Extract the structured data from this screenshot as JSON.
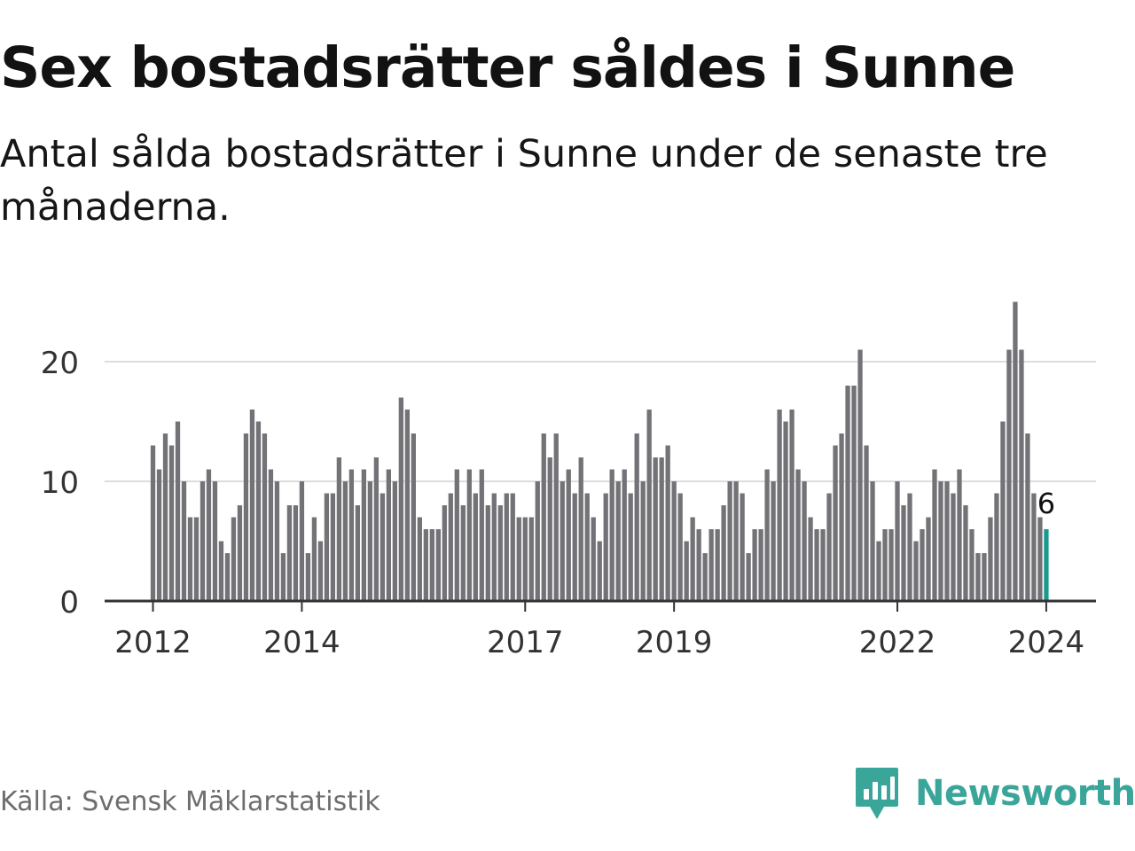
{
  "title": "Sex bostadsrätter såldes i Sunne",
  "subtitle": "Antal sålda bostadsrätter i Sunne under de senaste tre månaderna.",
  "source": "Källa: Svensk Mäklarstatistik",
  "brand": {
    "name": "Newsworthy",
    "icon": "newsworthy-logo-icon",
    "color": "#3aa69a"
  },
  "colors": {
    "bar": "#737277",
    "highlight": "#1a9a8e",
    "grid": "#dddddd",
    "axis": "#333333"
  },
  "chart_data": {
    "type": "bar",
    "title": "Sex bostadsrätter såldes i Sunne",
    "xlabel": "",
    "ylabel": "",
    "ylim": [
      0,
      25
    ],
    "yticks": [
      0,
      10,
      20
    ],
    "ytick_labels": [
      "0",
      "10",
      "20"
    ],
    "grid": true,
    "start_year": 2012,
    "xtick_labels": [
      "2012",
      "2014",
      "2017",
      "2019",
      "2022",
      "2024"
    ],
    "xtick_indices": [
      0,
      24,
      60,
      84,
      120,
      144
    ],
    "highlight_index": 144,
    "highlight_label": "6",
    "values": [
      13,
      11,
      14,
      13,
      15,
      10,
      7,
      7,
      10,
      11,
      10,
      5,
      4,
      7,
      8,
      14,
      16,
      15,
      14,
      11,
      10,
      4,
      8,
      8,
      10,
      4,
      7,
      5,
      9,
      9,
      12,
      10,
      11,
      8,
      11,
      10,
      12,
      9,
      11,
      10,
      17,
      16,
      14,
      7,
      6,
      6,
      6,
      8,
      9,
      11,
      8,
      11,
      9,
      11,
      8,
      9,
      8,
      9,
      9,
      7,
      7,
      7,
      10,
      14,
      12,
      14,
      10,
      11,
      9,
      12,
      9,
      7,
      5,
      9,
      11,
      10,
      11,
      9,
      14,
      10,
      16,
      12,
      12,
      13,
      10,
      9,
      5,
      7,
      6,
      4,
      6,
      6,
      8,
      10,
      10,
      9,
      4,
      6,
      6,
      11,
      10,
      16,
      15,
      16,
      11,
      10,
      7,
      6,
      6,
      9,
      13,
      14,
      18,
      18,
      21,
      13,
      10,
      5,
      6,
      6,
      10,
      8,
      9,
      5,
      6,
      7,
      11,
      10,
      10,
      9,
      11,
      8,
      6,
      4,
      4,
      7,
      9,
      15,
      21,
      25,
      21,
      14,
      9,
      7,
      6
    ]
  }
}
